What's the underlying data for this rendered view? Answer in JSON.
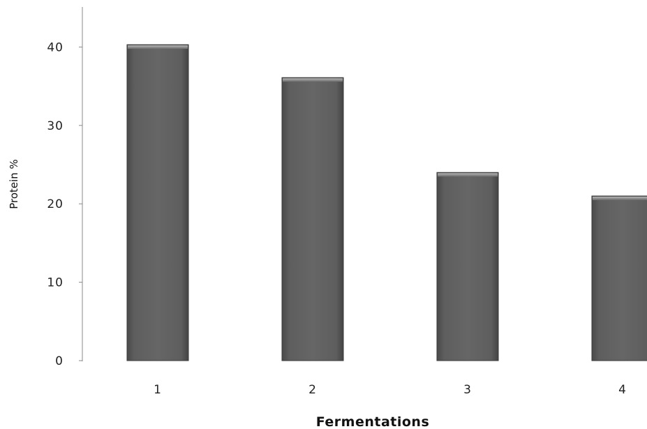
{
  "chart_data": {
    "type": "bar",
    "title": "",
    "xlabel": "Fermentations",
    "ylabel": "Protein %",
    "categories": [
      "1",
      "2",
      "3",
      "4"
    ],
    "values": [
      40.3,
      36.1,
      24.0,
      21.0
    ],
    "ylim": [
      0,
      45
    ],
    "yticks": [
      0,
      10,
      20,
      30,
      40
    ],
    "grid": false,
    "legend": "none",
    "colors": {
      "bar": "#5c5c5c",
      "bar_edge": "#3a3a3a",
      "axis": "#8a8a8a"
    }
  }
}
